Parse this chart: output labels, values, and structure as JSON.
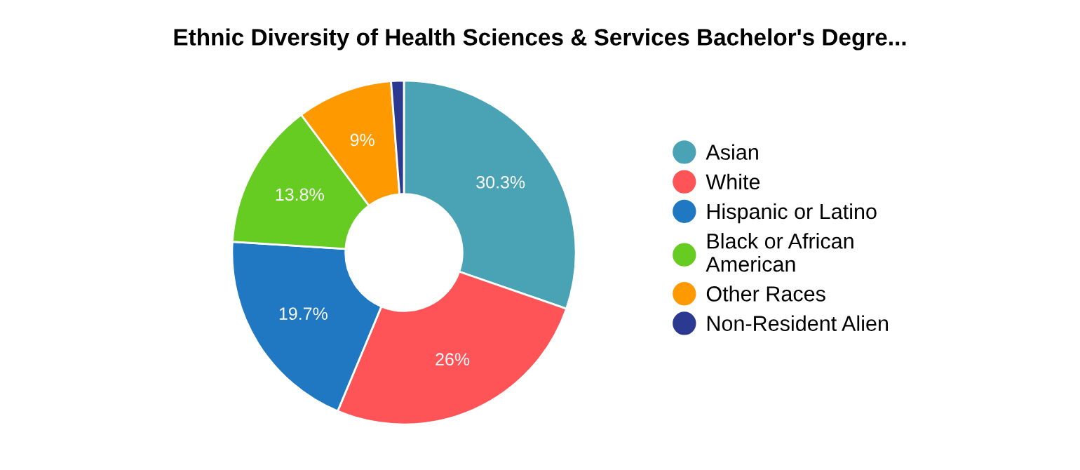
{
  "chart_data": {
    "type": "donut",
    "title": "Ethnic Diversity of Health Sciences & Services Bachelor's Degre...",
    "categories": [
      "Asian",
      "White",
      "Hispanic or Latino",
      "Black or African American",
      "Other Races",
      "Non-Resident Alien"
    ],
    "values": [
      30.3,
      26,
      19.7,
      13.8,
      9,
      1.2
    ],
    "colors": [
      "#4aa3b5",
      "#fe5457",
      "#1f78c1",
      "#66cc22",
      "#ff9900",
      "#2b3990"
    ],
    "value_labels": [
      "30.3%",
      "26%",
      "19.7%",
      "13.8%",
      "9%",
      null
    ],
    "legend": "right"
  }
}
